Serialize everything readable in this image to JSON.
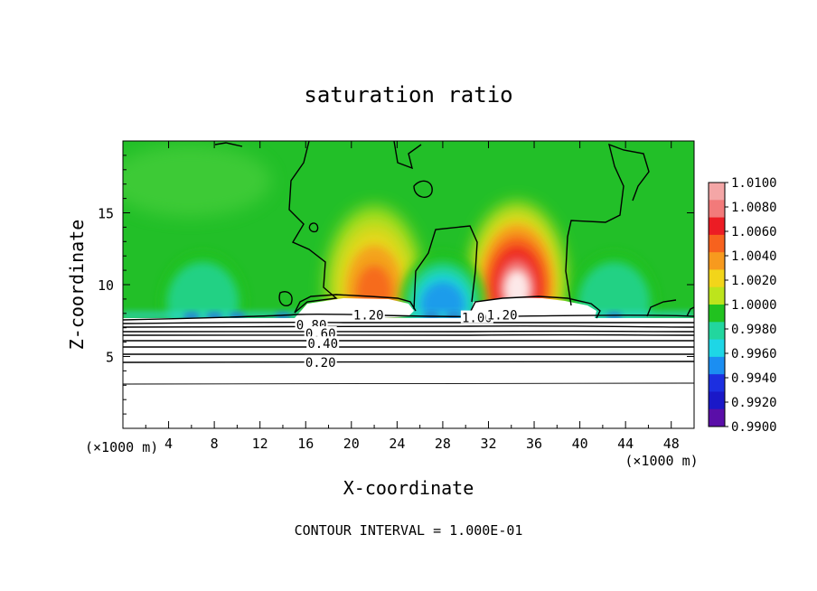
{
  "chart_data": {
    "type": "heatmap",
    "title": "saturation ratio",
    "xlabel": "X-coordinate",
    "ylabel": "Z-coordinate",
    "x_unit_left": "(×1000 m)",
    "x_unit_right": "(×1000 m)",
    "xlim": [
      0,
      50
    ],
    "ylim": [
      0,
      20
    ],
    "x_ticks": [
      4,
      8,
      12,
      16,
      20,
      24,
      28,
      32,
      36,
      40,
      44,
      48
    ],
    "y_ticks": [
      5,
      10,
      15
    ],
    "footer": "CONTOUR INTERVAL = 1.000E-01",
    "colorbar": {
      "range": [
        0.99,
        1.01
      ],
      "labels": [
        "1.0100",
        "1.0080",
        "1.0060",
        "1.0040",
        "1.0020",
        "1.0000",
        "0.9980",
        "0.9960",
        "0.9940",
        "0.9920",
        "0.9900"
      ],
      "colors": [
        "#f4a6a6",
        "#f27a7a",
        "#ec1c24",
        "#f7621e",
        "#f79a1e",
        "#f2d51a",
        "#bde41c",
        "#21c21f",
        "#22d69e",
        "#1ed6e6",
        "#1b8ef2",
        "#1c2fe0",
        "#1a18c8",
        "#5a0ea8"
      ]
    },
    "contour_labels": [
      {
        "text": "1.20",
        "x": 21.5,
        "z": 7.9
      },
      {
        "text": "1.00",
        "x": 31.0,
        "z": 7.7
      },
      {
        "text": "1.20",
        "x": 33.2,
        "z": 7.9
      },
      {
        "text": "0.80",
        "x": 16.5,
        "z": 7.2
      },
      {
        "text": "0.60",
        "x": 17.3,
        "z": 6.6
      },
      {
        "text": "0.40",
        "x": 17.5,
        "z": 5.9
      },
      {
        "text": "0.20",
        "x": 17.3,
        "z": 4.6
      }
    ],
    "subsaturated_layer_top_z": 7.5,
    "plumes": [
      {
        "x": 22,
        "z": 10.2,
        "max": 1.0045
      },
      {
        "x": 34.5,
        "z": 10.5,
        "max": 1.0095
      },
      {
        "x": 7,
        "z": 9.5,
        "min": 0.9965
      },
      {
        "x": 28,
        "z": 9.5,
        "min": 0.995
      },
      {
        "x": 43,
        "z": 9.2,
        "min": 0.9965
      }
    ]
  }
}
